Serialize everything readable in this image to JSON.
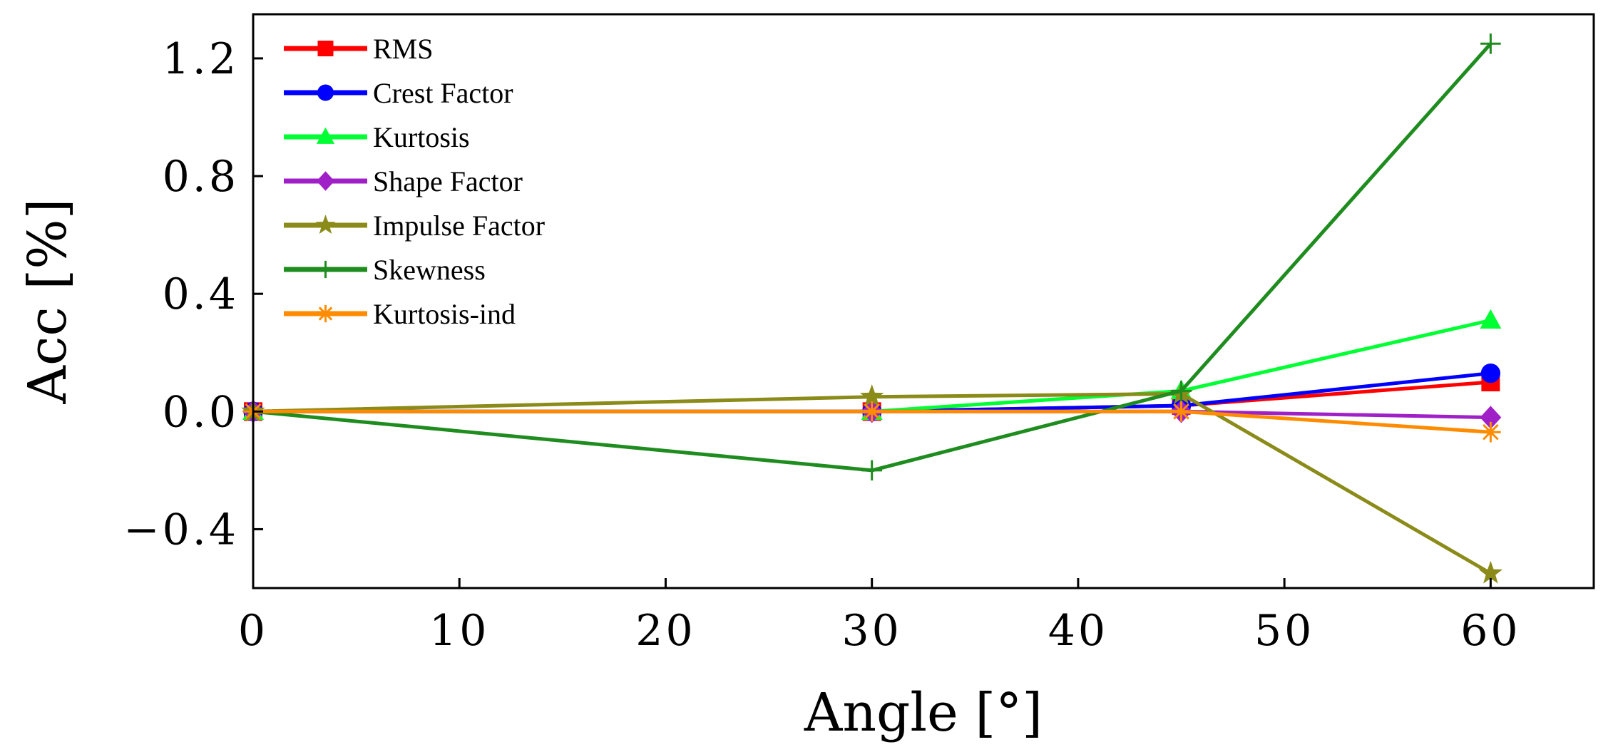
{
  "chart_data": {
    "type": "line",
    "title": "",
    "xlabel": "Angle [°]",
    "ylabel": "Acc [%]",
    "xlim": [
      0,
      65
    ],
    "ylim": [
      -0.6,
      1.35
    ],
    "xticks": [
      0,
      10,
      20,
      30,
      40,
      50,
      60
    ],
    "xtick_labels": [
      "0",
      "10",
      "20",
      "30",
      "40",
      "50",
      "60"
    ],
    "yticks": [
      -0.4,
      0.0,
      0.4,
      0.8,
      1.2
    ],
    "ytick_labels": [
      "−0.4",
      "0.0",
      "0.4",
      "0.8",
      "1.2"
    ],
    "grid": false,
    "legend_position": "top-left",
    "x": [
      0,
      30,
      45,
      60
    ],
    "series": [
      {
        "name": "RMS",
        "color": "#ff0000",
        "marker": "square",
        "values": [
          0.0,
          0.0,
          0.02,
          0.1
        ]
      },
      {
        "name": "Crest Factor",
        "color": "#0000ff",
        "marker": "circle",
        "values": [
          0.0,
          0.0,
          0.02,
          0.13
        ]
      },
      {
        "name": "Kurtosis",
        "color": "#00ff33",
        "marker": "triangle",
        "values": [
          0.0,
          0.0,
          0.07,
          0.31
        ]
      },
      {
        "name": "Shape Factor",
        "color": "#a020c8",
        "marker": "diamond",
        "values": [
          0.0,
          0.0,
          0.0,
          -0.02
        ]
      },
      {
        "name": "Impulse Factor",
        "color": "#8b8b1a",
        "marker": "star",
        "values": [
          0.0,
          0.05,
          0.06,
          -0.55
        ]
      },
      {
        "name": "Skewness",
        "color": "#1e8c1e",
        "marker": "plus",
        "values": [
          0.0,
          -0.2,
          0.07,
          1.25
        ]
      },
      {
        "name": "Kurtosis-ind",
        "color": "#ff8c00",
        "marker": "asterisk",
        "values": [
          0.0,
          0.0,
          0.0,
          -0.07
        ]
      }
    ]
  }
}
